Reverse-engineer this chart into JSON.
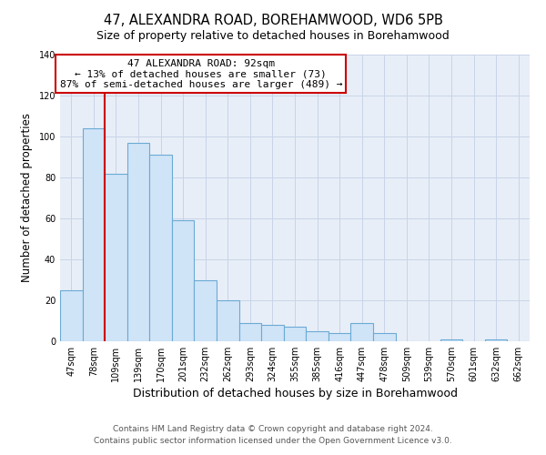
{
  "title": "47, ALEXANDRA ROAD, BOREHAMWOOD, WD6 5PB",
  "subtitle": "Size of property relative to detached houses in Borehamwood",
  "xlabel": "Distribution of detached houses by size in Borehamwood",
  "ylabel": "Number of detached properties",
  "bar_labels": [
    "47sqm",
    "78sqm",
    "109sqm",
    "139sqm",
    "170sqm",
    "201sqm",
    "232sqm",
    "262sqm",
    "293sqm",
    "324sqm",
    "355sqm",
    "385sqm",
    "416sqm",
    "447sqm",
    "478sqm",
    "509sqm",
    "539sqm",
    "570sqm",
    "601sqm",
    "632sqm",
    "662sqm"
  ],
  "bar_values": [
    25,
    104,
    82,
    97,
    91,
    59,
    30,
    20,
    9,
    8,
    7,
    5,
    4,
    9,
    4,
    0,
    0,
    1,
    0,
    1,
    0
  ],
  "bar_color": "#d0e4f7",
  "bar_edge_color": "#6aaad4",
  "annotation_title": "47 ALEXANDRA ROAD: 92sqm",
  "annotation_line1": "← 13% of detached houses are smaller (73)",
  "annotation_line2": "87% of semi-detached houses are larger (489) →",
  "annotation_box_color": "#ffffff",
  "annotation_border_color": "#cc0000",
  "vline_color": "#cc0000",
  "vline_x": 1.5,
  "ylim": [
    0,
    140
  ],
  "yticks": [
    0,
    20,
    40,
    60,
    80,
    100,
    120,
    140
  ],
  "plot_bg_color": "#e8eef7",
  "fig_bg_color": "#ffffff",
  "grid_color": "#c8d4e8",
  "footer1": "Contains HM Land Registry data © Crown copyright and database right 2024.",
  "footer2": "Contains public sector information licensed under the Open Government Licence v3.0.",
  "title_fontsize": 10.5,
  "subtitle_fontsize": 9,
  "xlabel_fontsize": 9,
  "ylabel_fontsize": 8.5,
  "tick_fontsize": 7,
  "annotation_fontsize": 8,
  "footer_fontsize": 6.5
}
